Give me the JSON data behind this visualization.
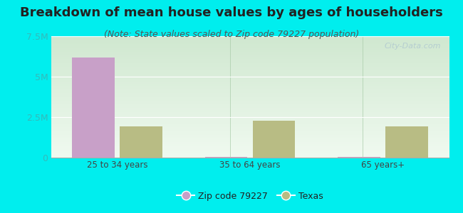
{
  "title": "Breakdown of mean house values by ages of householders",
  "subtitle": "(Note: State values scaled to Zip code 79227 population)",
  "categories": [
    "25 to 34 years",
    "35 to 64 years",
    "65 years+"
  ],
  "zip_values": [
    6200000,
    55000,
    55000
  ],
  "texas_values": [
    1950000,
    2300000,
    1950000
  ],
  "zip_color": "#c8a0c8",
  "texas_color": "#b8bc84",
  "background_outer": "#00eeee",
  "background_inner_top": "#d0e8d0",
  "background_inner_bottom": "#f0faf0",
  "ylim": [
    0,
    7500000
  ],
  "yticks": [
    0,
    2500000,
    5000000,
    7500000
  ],
  "ytick_labels": [
    "0",
    "2.5M",
    "5M",
    "7.5M"
  ],
  "bar_width": 0.32,
  "title_fontsize": 13,
  "subtitle_fontsize": 9,
  "legend_labels": [
    "Zip code 79227",
    "Texas"
  ],
  "watermark": "City-Data.com",
  "tick_color": "#33bbbb",
  "label_color": "#444444",
  "title_color": "#222222",
  "subtitle_color": "#555555",
  "grid_color": "#e0e8e0"
}
